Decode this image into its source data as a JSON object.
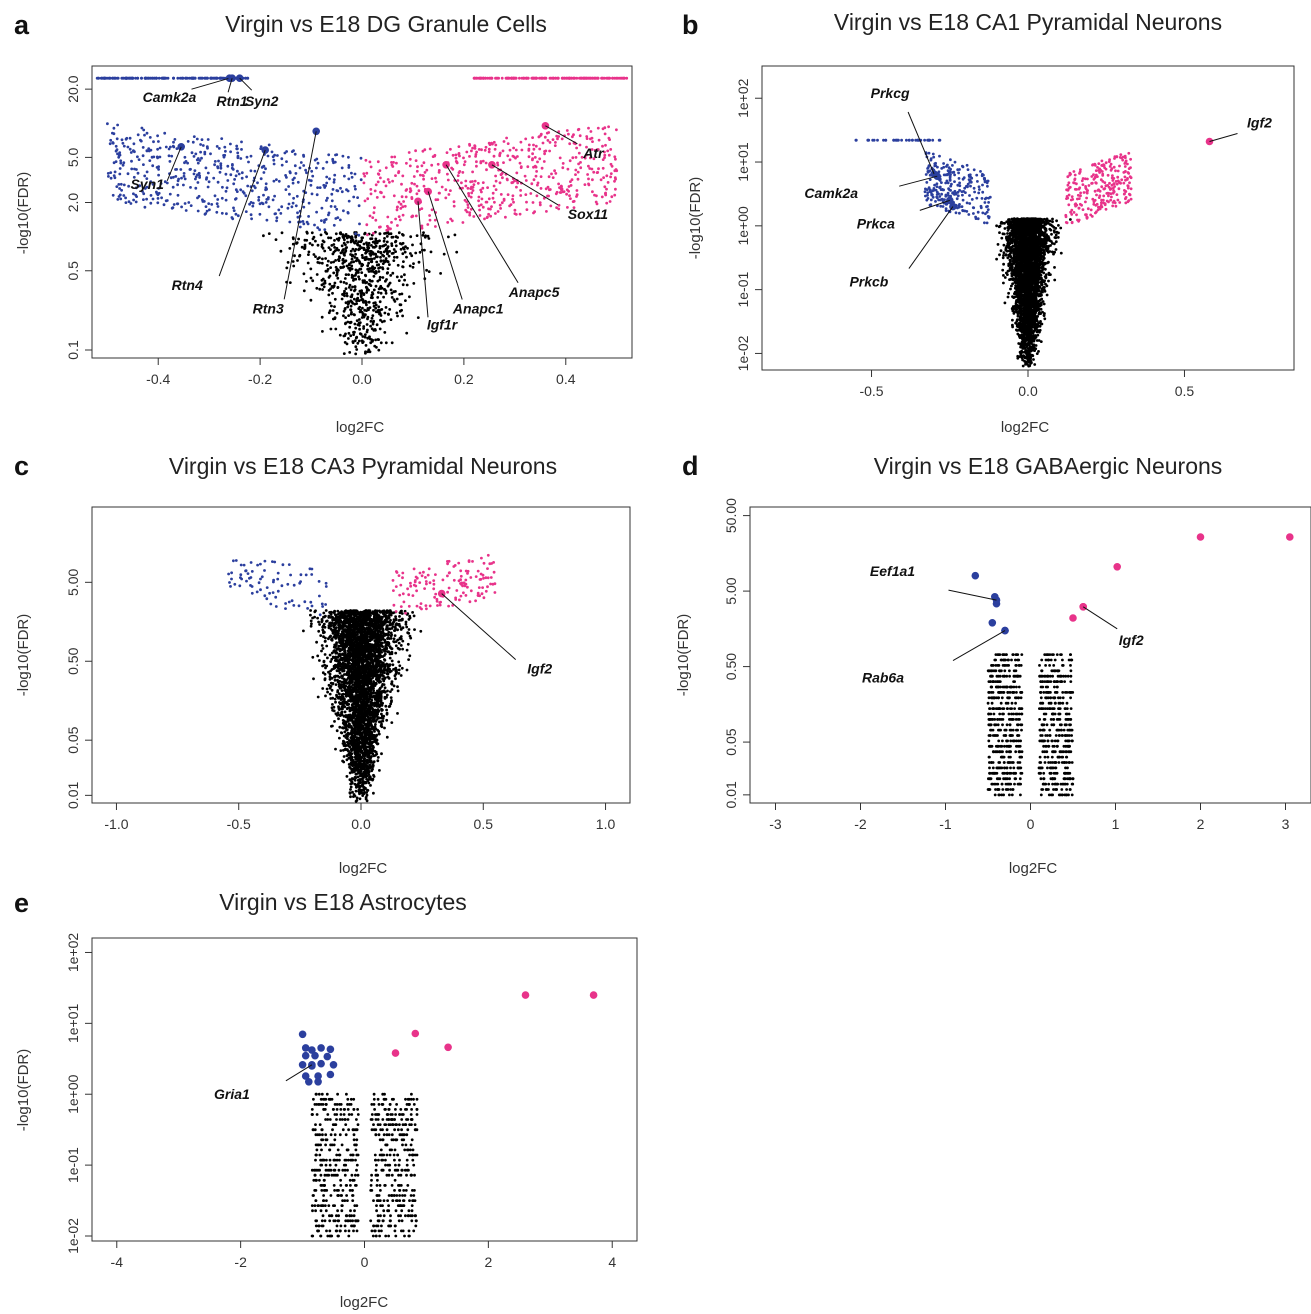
{
  "colors": {
    "up": "#e8338a",
    "down": "#2b3f9e",
    "ns": "#000000",
    "frame": "#333333"
  },
  "chart_data": [
    {
      "panel": "a",
      "title": "Virgin vs E18 DG Granule Cells",
      "type": "scatter",
      "xlabel": "log2FC",
      "ylabel": "-log10(FDR)",
      "xlim": [
        -0.53,
        0.53
      ],
      "ylim": [
        0.085,
        32
      ],
      "log_y": true,
      "xticks": [
        -0.4,
        -0.2,
        0.0,
        0.2,
        0.4
      ],
      "xtick_labels": [
        "-0.4",
        "-0.2",
        "0.0",
        "0.2",
        "0.4"
      ],
      "yticks": [
        0.1,
        0.5,
        2.0,
        5.0,
        20.0
      ],
      "ytick_labels": [
        "0.1",
        "0.5",
        "2.0",
        "5.0",
        "20.0"
      ],
      "point_size": 1.4,
      "highlight_size": 3.8,
      "n_ns": 750,
      "n_down": 520,
      "n_up": 560,
      "cloud": {
        "ns_fdr_max": 1.1,
        "ns_xspread_base": 0.03,
        "ns_xspread_slope": 0.11,
        "y_floor": 0.08,
        "sig_fdr_min": 1.0,
        "sig_fdr_max": 10,
        "sig_x_min": 0.0,
        "sig_x_max": 0.5,
        "cap_fdr": 25,
        "cap_down": [
          -0.52,
          -0.22
        ],
        "cap_up": [
          0.22,
          0.52
        ],
        "n_cap": 160,
        "min_lfc": 0.0
      },
      "genes": [
        {
          "name": "Camk2a",
          "x": -0.26,
          "y": 25,
          "group": "down"
        },
        {
          "name": "Rtn1",
          "x": -0.255,
          "y": 25,
          "group": "down"
        },
        {
          "name": "Syn2",
          "x": -0.24,
          "y": 25,
          "group": "down"
        },
        {
          "name": "Syn1",
          "x": -0.355,
          "y": 6.2,
          "group": "down"
        },
        {
          "name": "Rtn4",
          "x": -0.19,
          "y": 5.8,
          "group": "down"
        },
        {
          "name": "Rtn3",
          "x": -0.09,
          "y": 8.5,
          "group": "down"
        },
        {
          "name": "Igf1r",
          "x": 0.11,
          "y": 2.05,
          "group": "up"
        },
        {
          "name": "Anapc1",
          "x": 0.13,
          "y": 2.5,
          "group": "up"
        },
        {
          "name": "Anapc5",
          "x": 0.165,
          "y": 4.3,
          "group": "up"
        },
        {
          "name": "Sox11",
          "x": 0.255,
          "y": 4.3,
          "group": "up"
        },
        {
          "name": "Atr",
          "x": 0.36,
          "y": 9.5,
          "group": "up"
        }
      ]
    },
    {
      "panel": "b",
      "title": "Virgin vs E18 CA1 Pyramidal Neurons",
      "type": "scatter",
      "xlabel": "log2FC",
      "ylabel": "-log10(FDR)",
      "xlim": [
        -0.85,
        0.85
      ],
      "ylim": [
        0.0055,
        320
      ],
      "log_y": true,
      "xticks": [
        -0.5,
        0.0,
        0.5
      ],
      "xtick_labels": [
        "-0.5",
        "0.0",
        "0.5"
      ],
      "yticks": [
        0.01,
        0.1,
        1,
        10,
        100
      ],
      "ytick_labels": [
        "1e-02",
        "1e-01",
        "1e+00",
        "1e+01",
        "1e+02"
      ],
      "point_size": 1.4,
      "highlight_size": 3.8,
      "n_ns": 3200,
      "n_down": 260,
      "n_up": 260,
      "cloud": {
        "ns_fdr_max": 1.3,
        "ns_xspread_base": 0.02,
        "ns_xspread_slope": 0.045,
        "y_floor": 0.0058,
        "sig_fdr_min": 1.0,
        "sig_fdr_max": 15,
        "sig_x_min": 0.12,
        "sig_x_max": 0.33,
        "cap_fdr": 22,
        "cap_down": [
          -0.55,
          -0.28
        ],
        "cap_up": [],
        "n_cap": 40,
        "min_lfc": 0.1
      },
      "genes": [
        {
          "name": "Prkcg",
          "x": -0.3,
          "y": 6.5,
          "group": "down"
        },
        {
          "name": "Camk2a",
          "x": -0.29,
          "y": 6.0,
          "group": "down"
        },
        {
          "name": "Prkca",
          "x": -0.25,
          "y": 2.5,
          "group": "down"
        },
        {
          "name": "Prkcb",
          "x": -0.24,
          "y": 2.0,
          "group": "down"
        },
        {
          "name": "Igf2",
          "x": 0.58,
          "y": 21,
          "group": "up"
        }
      ]
    },
    {
      "panel": "c",
      "title": "Virgin vs E18 CA3 Pyramidal Neurons",
      "type": "scatter",
      "xlabel": "log2FC",
      "ylabel": "-log10(FDR)",
      "xlim": [
        -1.1,
        1.1
      ],
      "ylim": [
        0.008,
        45
      ],
      "log_y": true,
      "xticks": [
        -1.0,
        -0.5,
        0.0,
        0.5,
        1.0
      ],
      "xtick_labels": [
        "-1.0",
        "-0.5",
        "0.0",
        "0.5",
        "1.0"
      ],
      "yticks": [
        0.01,
        0.05,
        0.5,
        5
      ],
      "ytick_labels": [
        "0.01",
        "0.05",
        "0.50",
        "5.00"
      ],
      "point_size": 1.4,
      "highlight_size": 3.8,
      "n_ns": 3800,
      "n_down": 80,
      "n_up": 140,
      "cloud": {
        "ns_fdr_max": 2.2,
        "ns_xspread_base": 0.03,
        "ns_xspread_slope": 0.12,
        "y_floor": 0.008,
        "sig_fdr_min": 1.8,
        "sig_fdr_max": 12,
        "sig_x_min": 0.12,
        "sig_x_max": 0.55,
        "cap_fdr": 0,
        "cap_down": [],
        "cap_up": [],
        "n_cap": 0,
        "min_lfc": 0.08
      },
      "genes": [
        {
          "name": "Igf2",
          "x": 0.33,
          "y": 3.6,
          "group": "up"
        }
      ]
    },
    {
      "panel": "d",
      "title": "Virgin vs E18 GABAergic Neurons",
      "type": "scatter",
      "xlabel": "log2FC",
      "ylabel": "-log10(FDR)",
      "xlim": [
        -3.3,
        3.3
      ],
      "ylim": [
        0.0078,
        65
      ],
      "log_y": true,
      "xticks": [
        -3,
        -2,
        -1,
        0,
        1,
        2,
        3
      ],
      "xtick_labels": [
        "-3",
        "-2",
        "-1",
        "0",
        "1",
        "2",
        "3"
      ],
      "yticks": [
        0.01,
        0.05,
        0.5,
        5,
        50
      ],
      "ytick_labels": [
        "0.01",
        "0.05",
        "0.50",
        "5.00",
        "50.00"
      ],
      "point_size": 1.4,
      "highlight_size": 3.8,
      "n_ns": 900,
      "n_down": 0,
      "n_up": 0,
      "cloud": {
        "ns_fdr_max": 0.75,
        "ns_gap": 0.1,
        "ns_x_spread": 0.4,
        "y_floor": 0.01,
        "rows": true
      },
      "down_points": [
        [
          -0.65,
          8.0
        ],
        [
          -0.42,
          4.2
        ],
        [
          -0.4,
          3.4
        ],
        [
          -0.45,
          1.9
        ],
        [
          -0.3,
          1.5
        ]
      ],
      "up_points": [
        [
          0.5,
          2.2
        ],
        [
          0.62,
          3.1
        ],
        [
          1.02,
          10.5
        ],
        [
          2.0,
          26
        ],
        [
          3.05,
          26
        ]
      ],
      "genes": [
        {
          "name": "Eef1a1",
          "x": -0.4,
          "y": 3.8,
          "group": "down"
        },
        {
          "name": "Rab6a",
          "x": -0.3,
          "y": 1.5,
          "group": "down"
        },
        {
          "name": "Igf2",
          "x": 0.62,
          "y": 3.1,
          "group": "up"
        }
      ]
    },
    {
      "panel": "e",
      "title": "Virgin vs E18 Astrocytes",
      "type": "scatter",
      "xlabel": "log2FC",
      "ylabel": "-log10(FDR)",
      "xlim": [
        -4.4,
        4.4
      ],
      "ylim": [
        0.0085,
        160
      ],
      "log_y": true,
      "xticks": [
        -4,
        -2,
        0,
        2,
        4
      ],
      "xtick_labels": [
        "-4",
        "-2",
        "0",
        "2",
        "4"
      ],
      "yticks": [
        0.01,
        0.1,
        1,
        10,
        100
      ],
      "ytick_labels": [
        "1e-02",
        "1e-01",
        "1e+00",
        "1e+01",
        "1e+02"
      ],
      "point_size": 1.4,
      "highlight_size": 3.8,
      "n_ns": 700,
      "n_down": 0,
      "n_up": 0,
      "cloud": {
        "ns_fdr_max": 1.0,
        "ns_gap": 0.1,
        "ns_x_spread": 0.75,
        "y_floor": 0.01,
        "rows": true
      },
      "down_points": [
        [
          -1.0,
          7.0
        ],
        [
          -0.95,
          4.5
        ],
        [
          -0.85,
          4.2
        ],
        [
          -0.7,
          4.5
        ],
        [
          -0.55,
          4.3
        ],
        [
          -0.95,
          3.5
        ],
        [
          -0.8,
          3.5
        ],
        [
          -0.6,
          3.4
        ],
        [
          -1.0,
          2.6
        ],
        [
          -0.85,
          2.5
        ],
        [
          -0.7,
          2.7
        ],
        [
          -0.5,
          2.6
        ],
        [
          -0.95,
          1.8
        ],
        [
          -0.75,
          1.8
        ],
        [
          -0.55,
          1.9
        ],
        [
          -0.9,
          1.5
        ],
        [
          -0.75,
          1.5
        ]
      ],
      "up_points": [
        [
          0.5,
          3.8
        ],
        [
          0.82,
          7.2
        ],
        [
          1.35,
          4.6
        ],
        [
          2.6,
          25
        ],
        [
          3.7,
          25
        ]
      ],
      "genes": [
        {
          "name": "Gria1",
          "x": -0.85,
          "y": 2.6,
          "group": "down"
        }
      ]
    }
  ]
}
